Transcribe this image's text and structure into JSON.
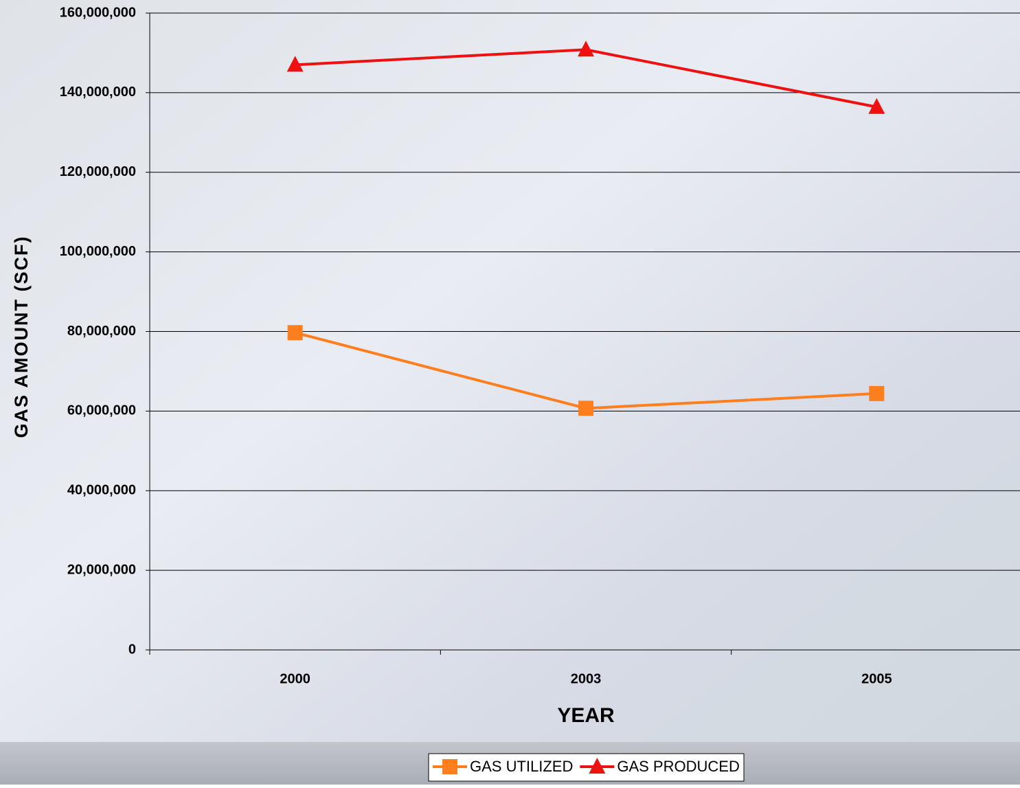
{
  "chart_data": {
    "type": "line",
    "categories": [
      "2000",
      "2003",
      "2005"
    ],
    "x_label": "YEAR",
    "y_label": "GAS AMOUNT (SCF)",
    "series": [
      {
        "name": "GAS UTILIZED",
        "color": "#ff7f1e",
        "marker": "square",
        "values": [
          79700000,
          60700000,
          64400000
        ]
      },
      {
        "name": "GAS PRODUCED",
        "color": "#ee1111",
        "marker": "triangle",
        "values": [
          147000000,
          150800000,
          136400000
        ]
      }
    ],
    "ylim": [
      0,
      160000000
    ],
    "yticks": [
      0,
      {
        "value": 20000000,
        "label": "20,000,000"
      },
      {
        "value": 40000000,
        "label": "40,000,000"
      },
      {
        "value": 60000000,
        "label": "60,000,000"
      },
      {
        "value": 80000000,
        "label": "80,000,000"
      },
      {
        "value": 100000000,
        "label": "100,000,000"
      },
      {
        "value": 120000000,
        "label": "120,000,000"
      },
      {
        "value": 140000000,
        "label": "140,000,000"
      },
      {
        "value": 160000000,
        "label": "160,000,000"
      }
    ],
    "grid": true
  }
}
